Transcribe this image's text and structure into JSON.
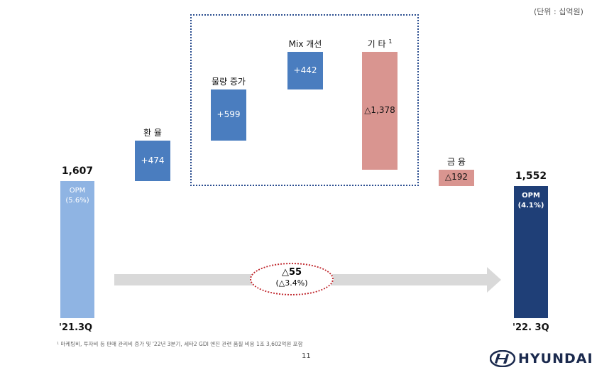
{
  "unit_note": "(단위 : 십억원)",
  "chart_data": {
    "type": "waterfall",
    "title": "",
    "xlabel": "",
    "ylabel": "",
    "unit": "십억원",
    "grid": false,
    "start": {
      "period": "'21.3Q",
      "value": 1607,
      "value_label": "1,607",
      "sub_label": "OPM",
      "sub_pct": "(5.6%)"
    },
    "end": {
      "period": "'22. 3Q",
      "value": 1552,
      "value_label": "1,552",
      "sub_label": "OPM",
      "sub_pct": "(4.1%)"
    },
    "steps": [
      {
        "name": "환 율",
        "value": 474,
        "label": "+474",
        "color": "#4a7dbf"
      },
      {
        "name": "물량 증가",
        "value": 599,
        "label": "+599",
        "color": "#4a7dbf"
      },
      {
        "name": "Mix 개선",
        "value": 442,
        "label": "+442",
        "color": "#4a7dbf"
      },
      {
        "name": "기 타",
        "superscript": "1",
        "value": -1378,
        "label": "△1,378",
        "color": "#d99590"
      },
      {
        "name": "금 융",
        "value": -192,
        "label": "△192",
        "color": "#d99590"
      }
    ],
    "change": {
      "value": -55,
      "value_label": "△55",
      "pct_label": "(△3.4%)"
    },
    "colors": {
      "start": "#8fb4e3",
      "end": "#1f3f77",
      "positive": "#4a7dbf",
      "negative": "#d99590",
      "arrow": "#d9d9d9"
    }
  },
  "footnote": "¹ 마케팅비, 투자비 등 판매 관리비 증가 및 '22년 3분기, 세타2 GDI 엔진 관련 품질 비용 1조 3,602억원 포함",
  "page_number": "11",
  "logo_text": "HYUNDAI"
}
